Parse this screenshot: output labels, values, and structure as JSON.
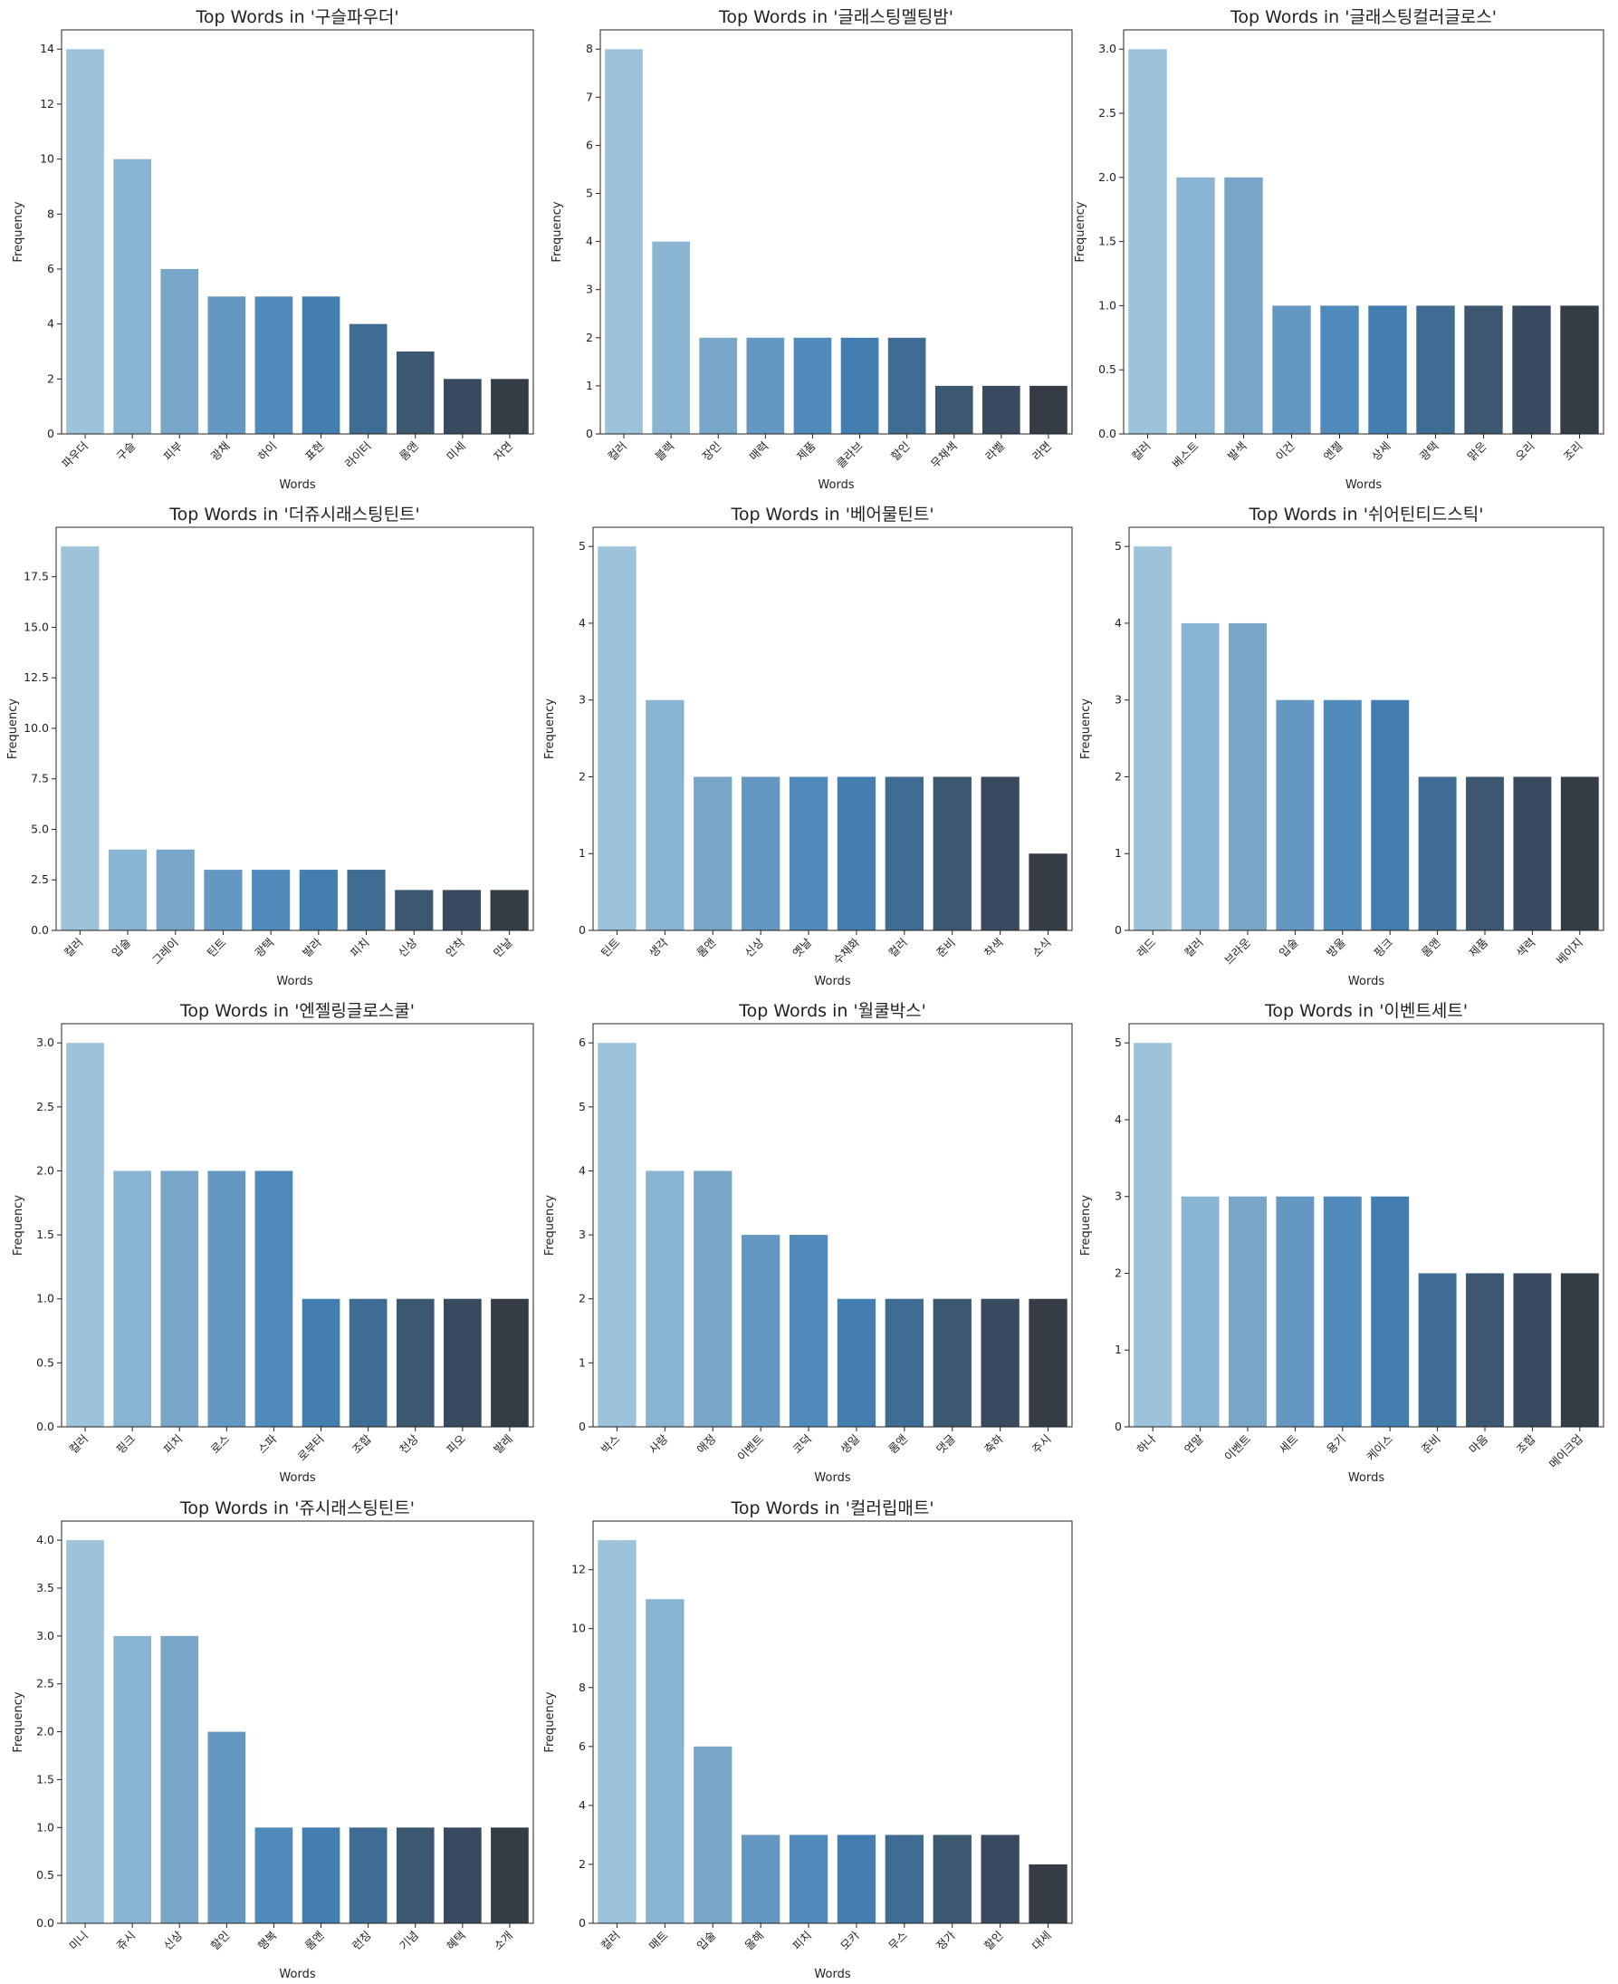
{
  "palette": [
    "#9dc3da",
    "#89b5d3",
    "#77a6c8",
    "#6498c3",
    "#4f8abb",
    "#447db0",
    "#3f6c92",
    "#3c5870",
    "#384b5e",
    "#343d45"
  ],
  "chart_data": [
    {
      "type": "bar",
      "title": "Top Words in '구슬파우더'",
      "xlabel": "Words",
      "ylabel": "Frequency",
      "categories": [
        "파우더",
        "구슬",
        "피부",
        "광채",
        "하이",
        "표현",
        "라이터",
        "롬앤",
        "미세",
        "자연"
      ],
      "values": [
        14,
        10,
        6,
        5,
        5,
        5,
        4,
        3,
        2,
        2
      ],
      "ylim": [
        0,
        14.7
      ],
      "yticks": [
        0,
        2,
        4,
        6,
        8,
        10,
        12,
        14
      ],
      "ytick_labels": [
        "0",
        "2",
        "4",
        "6",
        "8",
        "10",
        "12",
        "14"
      ]
    },
    {
      "type": "bar",
      "title": "Top Words in '글래스팅멜팅밤'",
      "xlabel": "Words",
      "ylabel": "Frequency",
      "categories": [
        "컬러",
        "블랙",
        "장인",
        "매력",
        "제품",
        "클라브",
        "할인",
        "무채색",
        "라벨",
        "라면"
      ],
      "values": [
        8,
        4,
        2,
        2,
        2,
        2,
        2,
        1,
        1,
        1
      ],
      "ylim": [
        0,
        8.4
      ],
      "yticks": [
        0,
        1,
        2,
        3,
        4,
        5,
        6,
        7,
        8
      ],
      "ytick_labels": [
        "0",
        "1",
        "2",
        "3",
        "4",
        "5",
        "6",
        "7",
        "8"
      ]
    },
    {
      "type": "bar",
      "title": "Top Words in '글래스팅컬러글로스'",
      "xlabel": "Words",
      "ylabel": "Frequency",
      "categories": [
        "컬러",
        "베스트",
        "발색",
        "이건",
        "엔젤",
        "상세",
        "광택",
        "맑은",
        "오리",
        "조리"
      ],
      "values": [
        3,
        2,
        2,
        1,
        1,
        1,
        1,
        1,
        1,
        1
      ],
      "ylim": [
        0,
        3.15
      ],
      "yticks": [
        0,
        0.5,
        1,
        1.5,
        2,
        2.5,
        3
      ],
      "ytick_labels": [
        "0.0",
        "0.5",
        "1.0",
        "1.5",
        "2.0",
        "2.5",
        "3.0"
      ]
    },
    {
      "type": "bar",
      "title": "Top Words in '더쥬시래스팅틴트'",
      "xlabel": "Words",
      "ylabel": "Frequency",
      "categories": [
        "컬러",
        "입술",
        "그레이",
        "틴트",
        "광택",
        "발라",
        "피치",
        "신상",
        "안착",
        "만날"
      ],
      "values": [
        19,
        4,
        4,
        3,
        3,
        3,
        3,
        2,
        2,
        2
      ],
      "ylim": [
        0,
        19.95
      ],
      "yticks": [
        0,
        2.5,
        5,
        7.5,
        10,
        12.5,
        15,
        17.5
      ],
      "ytick_labels": [
        "0.0",
        "2.5",
        "5.0",
        "7.5",
        "10.0",
        "12.5",
        "15.0",
        "17.5"
      ]
    },
    {
      "type": "bar",
      "title": "Top Words in '베어물틴트'",
      "xlabel": "Words",
      "ylabel": "Frequency",
      "categories": [
        "틴트",
        "생각",
        "롬앤",
        "신상",
        "옛날",
        "수채화",
        "컬러",
        "준비",
        "착색",
        "소식"
      ],
      "values": [
        5,
        3,
        2,
        2,
        2,
        2,
        2,
        2,
        2,
        1
      ],
      "ylim": [
        0,
        5.25
      ],
      "yticks": [
        0,
        1,
        2,
        3,
        4,
        5
      ],
      "ytick_labels": [
        "0",
        "1",
        "2",
        "3",
        "4",
        "5"
      ]
    },
    {
      "type": "bar",
      "title": "Top Words in '쉬어틴티드스틱'",
      "xlabel": "Words",
      "ylabel": "Frequency",
      "categories": [
        "레드",
        "컬러",
        "브라운",
        "입술",
        "방울",
        "핑크",
        "롬앤",
        "제품",
        "색력",
        "베이지"
      ],
      "values": [
        5,
        4,
        4,
        3,
        3,
        3,
        2,
        2,
        2,
        2
      ],
      "ylim": [
        0,
        5.25
      ],
      "yticks": [
        0,
        1,
        2,
        3,
        4,
        5
      ],
      "ytick_labels": [
        "0",
        "1",
        "2",
        "3",
        "4",
        "5"
      ]
    },
    {
      "type": "bar",
      "title": "Top Words in '엔젤링글로스쿨'",
      "xlabel": "Words",
      "ylabel": "Frequency",
      "categories": [
        "컬러",
        "핑크",
        "피치",
        "로스",
        "스파",
        "로부터",
        "조합",
        "천상",
        "피오",
        "발레"
      ],
      "values": [
        3,
        2,
        2,
        2,
        2,
        1,
        1,
        1,
        1,
        1
      ],
      "ylim": [
        0,
        3.15
      ],
      "yticks": [
        0,
        0.5,
        1,
        1.5,
        2,
        2.5,
        3
      ],
      "ytick_labels": [
        "0.0",
        "0.5",
        "1.0",
        "1.5",
        "2.0",
        "2.5",
        "3.0"
      ]
    },
    {
      "type": "bar",
      "title": "Top Words in '월쿨박스'",
      "xlabel": "Words",
      "ylabel": "Frequency",
      "categories": [
        "박스",
        "사랑",
        "애정",
        "이벤트",
        "코덕",
        "생일",
        "롬앤",
        "댓글",
        "축하",
        "주시"
      ],
      "values": [
        6,
        4,
        4,
        3,
        3,
        2,
        2,
        2,
        2,
        2
      ],
      "ylim": [
        0,
        6.3
      ],
      "yticks": [
        0,
        1,
        2,
        3,
        4,
        5,
        6
      ],
      "ytick_labels": [
        "0",
        "1",
        "2",
        "3",
        "4",
        "5",
        "6"
      ]
    },
    {
      "type": "bar",
      "title": "Top Words in '이벤트세트'",
      "xlabel": "Words",
      "ylabel": "Frequency",
      "categories": [
        "하나",
        "연말",
        "이벤트",
        "세트",
        "용기",
        "케이스",
        "준비",
        "마음",
        "조합",
        "메이크업"
      ],
      "values": [
        5,
        3,
        3,
        3,
        3,
        3,
        2,
        2,
        2,
        2
      ],
      "ylim": [
        0,
        5.25
      ],
      "yticks": [
        0,
        1,
        2,
        3,
        4,
        5
      ],
      "ytick_labels": [
        "0",
        "1",
        "2",
        "3",
        "4",
        "5"
      ]
    },
    {
      "type": "bar",
      "title": "Top Words in '쥬시래스팅틴트'",
      "xlabel": "Words",
      "ylabel": "Frequency",
      "categories": [
        "미니",
        "쥬시",
        "신상",
        "할인",
        "행복",
        "롬앤",
        "런칭",
        "기념",
        "혜택",
        "소개"
      ],
      "values": [
        4,
        3,
        3,
        2,
        1,
        1,
        1,
        1,
        1,
        1
      ],
      "ylim": [
        0,
        4.2
      ],
      "yticks": [
        0,
        0.5,
        1,
        1.5,
        2,
        2.5,
        3,
        3.5,
        4
      ],
      "ytick_labels": [
        "0.0",
        "0.5",
        "1.0",
        "1.5",
        "2.0",
        "2.5",
        "3.0",
        "3.5",
        "4.0"
      ]
    },
    {
      "type": "bar",
      "title": "Top Words in '컬러립매트'",
      "xlabel": "Words",
      "ylabel": "Frequency",
      "categories": [
        "컬러",
        "매트",
        "입술",
        "올해",
        "피치",
        "모카",
        "무스",
        "정가",
        "할인",
        "대세"
      ],
      "values": [
        13,
        11,
        6,
        3,
        3,
        3,
        3,
        3,
        3,
        2
      ],
      "ylim": [
        0,
        13.65
      ],
      "yticks": [
        0,
        2,
        4,
        6,
        8,
        10,
        12
      ],
      "ytick_labels": [
        "0",
        "2",
        "4",
        "6",
        "8",
        "10",
        "12"
      ]
    }
  ]
}
